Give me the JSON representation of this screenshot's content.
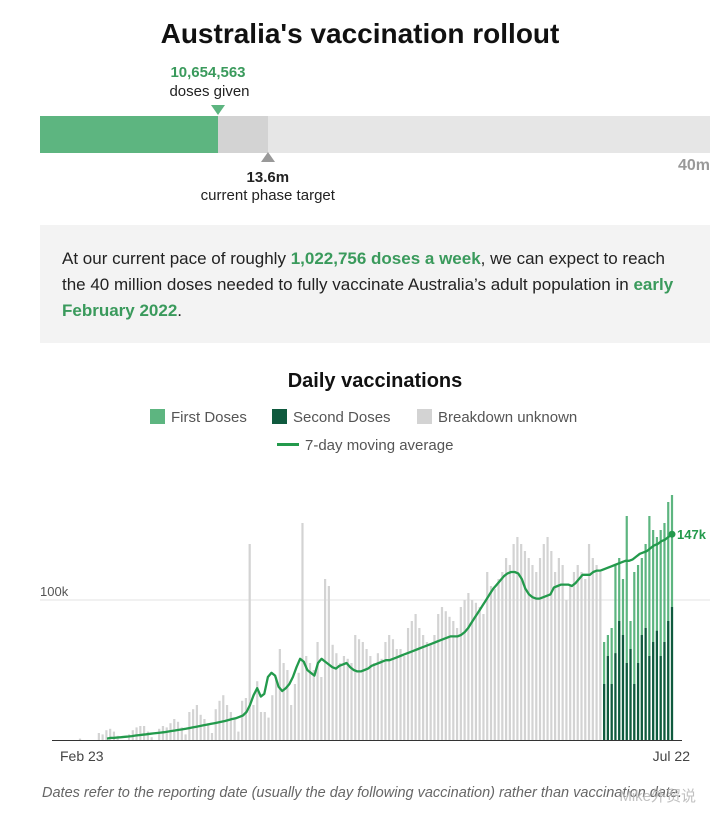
{
  "title": "Australia's vaccination rollout",
  "progress": {
    "doses_given": 10654563,
    "doses_given_text": "10,654,563",
    "doses_given_label": "doses given",
    "target": 13.6,
    "target_text": "13.6m",
    "target_label": "current phase target",
    "max": 40,
    "max_text": "40m"
  },
  "summary": {
    "p1": "At our current pace of roughly ",
    "rate": "1,022,756 doses a week",
    "p2": ", we can expect to reach the 40 million doses needed to fully vaccinate Australia’s adult population in ",
    "date": "early February 2022",
    "p3": "."
  },
  "colors": {
    "first": "#5db580",
    "second": "#0f5a3e",
    "unknown": "#d3d3d3",
    "average": "#239a4c",
    "grid": "#e3e3e3"
  },
  "chart_data": {
    "type": "bar",
    "title": "Daily vaccinations",
    "legend": [
      {
        "key": "first",
        "label": "First Doses"
      },
      {
        "key": "second",
        "label": "Second Doses"
      },
      {
        "key": "unknown",
        "label": "Breakdown unknown"
      },
      {
        "key": "average",
        "label": "7-day moving average"
      }
    ],
    "legend_placement": "top-center",
    "x_start_label": "Feb 23",
    "x_end_label": "Jul 22",
    "ylim": [
      0,
      200000
    ],
    "y_ticks": [
      {
        "value": 100000,
        "label": "100k"
      }
    ],
    "end_label": "147k",
    "split_start_index": 139,
    "unknown_doses": [
      1000,
      0,
      0,
      0,
      0,
      5000,
      4000,
      7000,
      8000,
      6000,
      3000,
      0,
      0,
      4000,
      7000,
      9000,
      10000,
      10000,
      6000,
      2000,
      0,
      8000,
      10000,
      9000,
      12000,
      15000,
      13000,
      9000,
      4000,
      20000,
      22000,
      25000,
      18000,
      15000,
      12000,
      5000,
      22000,
      28000,
      32000,
      25000,
      20000,
      15000,
      6000,
      28000,
      30000,
      140000,
      25000,
      42000,
      20000,
      20000,
      16000,
      32000,
      45000,
      65000,
      55000,
      50000,
      25000,
      40000,
      48000,
      155000,
      60000,
      55000,
      50000,
      70000,
      45000,
      115000,
      110000,
      68000,
      62000,
      55000,
      60000,
      58000,
      55000,
      75000,
      72000,
      70000,
      65000,
      60000,
      55000,
      62000,
      58000,
      70000,
      75000,
      72000,
      65000,
      65000,
      60000,
      80000,
      85000,
      90000,
      80000,
      75000,
      70000,
      68000,
      75000,
      90000,
      95000,
      92000,
      88000,
      85000,
      80000,
      95000,
      100000,
      105000,
      100000,
      98000,
      95000,
      90000,
      120000,
      110000,
      108000,
      115000,
      120000,
      130000,
      125000,
      140000,
      145000,
      140000,
      135000,
      130000,
      125000,
      120000,
      130000,
      140000,
      145000,
      135000,
      120000,
      130000,
      125000,
      100000,
      110000,
      120000,
      125000,
      120000,
      115000,
      140000,
      130000,
      125000,
      120000
    ],
    "first_doses": [
      70000,
      75000,
      80000,
      125000,
      130000,
      115000,
      160000,
      85000,
      120000,
      125000,
      130000,
      140000,
      160000,
      150000,
      145000,
      150000,
      155000,
      170000,
      175000
    ],
    "second_doses": [
      40000,
      60000,
      40000,
      62000,
      85000,
      75000,
      55000,
      65000,
      40000,
      55000,
      75000,
      80000,
      60000,
      70000,
      78000,
      60000,
      70000,
      85000,
      95000
    ],
    "moving_average": [
      1000,
      1500,
      1600,
      1800,
      2000,
      2300,
      2500,
      2800,
      3200,
      3500,
      3800,
      4100,
      4400,
      4700,
      5000,
      5300,
      5600,
      6000,
      6400,
      6800,
      7200,
      7600,
      8000,
      8500,
      9000,
      9500,
      10000,
      10500,
      11000,
      11500,
      12000,
      12500,
      13000,
      13600,
      14300,
      15000,
      15500,
      16500,
      17500,
      20000,
      25000,
      32000,
      37000,
      31000,
      33000,
      45000,
      48000,
      46000,
      38000,
      35000,
      37000,
      40000,
      45000,
      52000,
      58000,
      56000,
      50000,
      48000,
      46000,
      55000,
      58000,
      56000,
      54000,
      52000,
      51000,
      53000,
      54000,
      55000,
      52000,
      50000,
      49000,
      49000,
      50000,
      51000,
      53000,
      54000,
      55000,
      56000,
      57000,
      57000,
      58000,
      59000,
      60000,
      61000,
      62000,
      63000,
      64000,
      65000,
      66000,
      67000,
      68000,
      69000,
      70000,
      71000,
      72000,
      73000,
      74000,
      74000,
      74000,
      75000,
      77000,
      80000,
      84000,
      88000,
      92000,
      96000,
      100000,
      104000,
      108000,
      111000,
      114000,
      117000,
      119000,
      120000,
      120000,
      119000,
      115000,
      108000,
      104000,
      102000,
      101000,
      101000,
      102000,
      103000,
      104000,
      109000,
      110000,
      111000,
      111000,
      111000,
      110000,
      112000,
      115000,
      118000,
      118000,
      118000,
      120000,
      121000,
      121000,
      122000,
      123000,
      124000,
      125000,
      126000,
      127000,
      128000,
      128000,
      129000,
      131000,
      133000,
      134000,
      135000,
      137000,
      139000,
      140000,
      142000,
      143000,
      145000,
      147000
    ]
  },
  "footnote": "Dates refer to the reporting date (usually the day following vaccination) rather than vaccination date.",
  "watermark": "Mike外贸说"
}
